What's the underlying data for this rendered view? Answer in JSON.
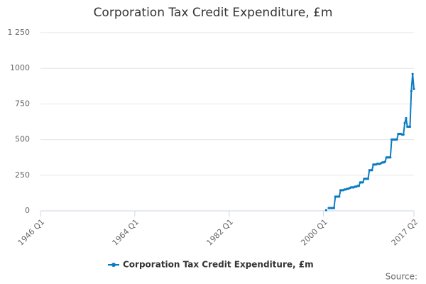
{
  "chart_data": {
    "type": "line",
    "title": "Corporation Tax Credit Expenditure, £m",
    "source": "Source:",
    "x": [
      2000.5,
      2000.75,
      2001,
      2001.25,
      2001.5,
      2001.75,
      2002,
      2002.25,
      2002.5,
      2002.75,
      2003,
      2003.25,
      2003.5,
      2003.75,
      2004,
      2004.25,
      2004.5,
      2004.75,
      2005,
      2005.25,
      2005.5,
      2005.75,
      2006,
      2006.25,
      2006.5,
      2006.75,
      2007,
      2007.25,
      2007.5,
      2007.75,
      2008,
      2008.25,
      2008.5,
      2008.75,
      2009,
      2009.25,
      2009.5,
      2009.75,
      2010,
      2010.25,
      2010.5,
      2010.75,
      2011,
      2011.25,
      2011.5,
      2011.75,
      2012,
      2012.25,
      2012.5,
      2012.75,
      2013,
      2013.25,
      2013.5,
      2013.75,
      2014,
      2014.25,
      2014.5,
      2014.75,
      2015,
      2015.25,
      2015.5,
      2015.75,
      2016,
      2016.25,
      2016.5,
      2016.75,
      2017,
      2017.25
    ],
    "series": [
      {
        "name": "Corporation Tax Credit Expenditure, £m",
        "color": "#0b7bc1",
        "values": [
          5,
          null,
          20,
          20,
          20,
          20,
          20,
          100,
          100,
          100,
          100,
          145,
          145,
          145,
          150,
          150,
          155,
          155,
          160,
          165,
          165,
          165,
          170,
          170,
          175,
          175,
          200,
          200,
          200,
          225,
          225,
          225,
          225,
          285,
          285,
          285,
          325,
          325,
          325,
          330,
          330,
          330,
          335,
          340,
          340,
          345,
          375,
          375,
          375,
          375,
          500,
          500,
          500,
          500,
          500,
          540,
          540,
          540,
          535,
          535,
          615,
          650,
          590,
          590,
          590,
          840,
          960,
          855
        ]
      }
    ],
    "xlim": [
      1946,
      2017.25
    ],
    "xticks": [
      {
        "value": 1946,
        "label": "1946 Q1"
      },
      {
        "value": 1964,
        "label": "1964 Q1"
      },
      {
        "value": 1982,
        "label": "1982 Q1"
      },
      {
        "value": 2000,
        "label": "2000 Q1"
      },
      {
        "value": 2017.25,
        "label": "2017 Q2"
      }
    ],
    "ylim": [
      0,
      1250
    ],
    "yticks": [
      0,
      250,
      500,
      750,
      1000,
      {
        "value": 1250,
        "label": "1 250"
      }
    ],
    "grid": true,
    "legend": "bottom"
  }
}
